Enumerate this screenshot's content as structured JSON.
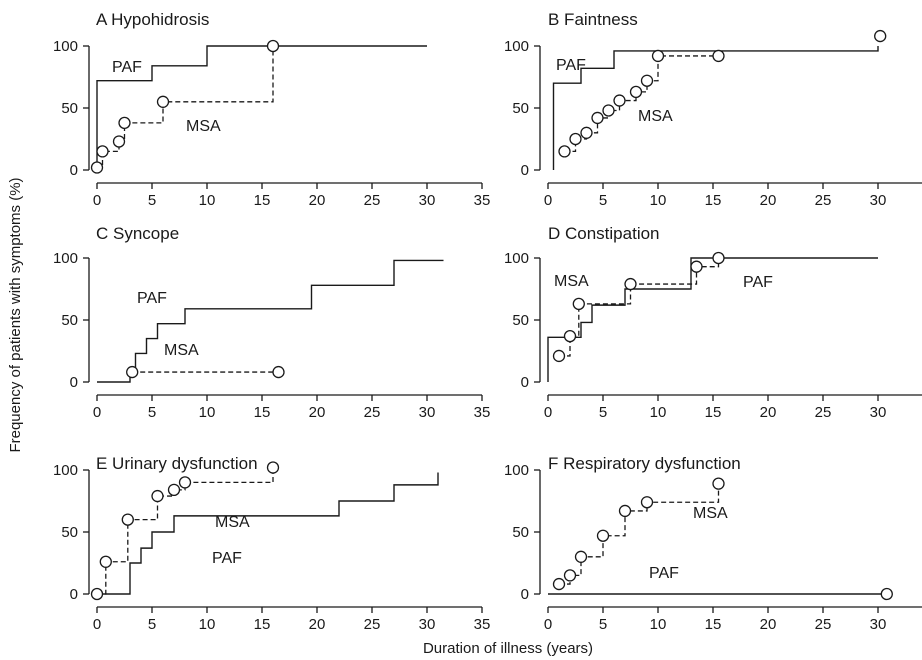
{
  "figure": {
    "xlabel": "Duration of illness (years)",
    "ylabel": "Frequency of patients with symptoms (%)"
  },
  "chart_data": [
    {
      "type": "line",
      "title": "A Hypohidrosis",
      "xlim": [
        0,
        35
      ],
      "ylim": [
        0,
        100
      ],
      "xticks": [
        "0",
        "5",
        "10",
        "15",
        "20",
        "25",
        "30",
        "35"
      ],
      "yticks": [
        "0",
        "50",
        "100"
      ],
      "series": [
        {
          "name": "PAF",
          "style": "solid-step",
          "markers": false,
          "points": [
            [
              0,
              0
            ],
            [
              0,
              72
            ],
            [
              5,
              72
            ],
            [
              5,
              84
            ],
            [
              10,
              84
            ],
            [
              10,
              100
            ],
            [
              30,
              100
            ]
          ]
        },
        {
          "name": "MSA",
          "style": "dashed-step",
          "markers": true,
          "points": [
            [
              0,
              2
            ],
            [
              0.5,
              15
            ],
            [
              2,
              23
            ],
            [
              2.5,
              38
            ],
            [
              6,
              55
            ],
            [
              16,
              100
            ]
          ]
        }
      ]
    },
    {
      "type": "line",
      "title": "B Faintness",
      "xlim": [
        0,
        35
      ],
      "ylim": [
        0,
        100
      ],
      "xticks": [
        "0",
        "5",
        "10",
        "15",
        "20",
        "25",
        "30",
        "35"
      ],
      "yticks": [
        "0",
        "50",
        "100"
      ],
      "series": [
        {
          "name": "PAF",
          "style": "solid-step",
          "markers": false,
          "points": [
            [
              0.5,
              0
            ],
            [
              0.5,
              70
            ],
            [
              3,
              70
            ],
            [
              3,
              82
            ],
            [
              6,
              82
            ],
            [
              6,
              96
            ],
            [
              30,
              96
            ],
            [
              30,
              100
            ]
          ]
        },
        {
          "name": "MSA",
          "style": "dashed-step",
          "markers": true,
          "points": [
            [
              1.5,
              15
            ],
            [
              2.5,
              25
            ],
            [
              3.5,
              30
            ],
            [
              4.5,
              42
            ],
            [
              5.5,
              48
            ],
            [
              6.5,
              56
            ],
            [
              8,
              63
            ],
            [
              9,
              72
            ],
            [
              10,
              92
            ],
            [
              15.5,
              92
            ]
          ]
        },
        {
          "name": "",
          "style": "marker-only",
          "markers": true,
          "points": [
            [
              30.2,
              108
            ]
          ]
        }
      ]
    },
    {
      "type": "line",
      "title": "C Syncope",
      "xlim": [
        0,
        35
      ],
      "ylim": [
        0,
        100
      ],
      "xticks": [
        "0",
        "5",
        "10",
        "15",
        "20",
        "25",
        "30",
        "35"
      ],
      "yticks": [
        "0",
        "50",
        "100"
      ],
      "series": [
        {
          "name": "PAF",
          "style": "solid-step",
          "markers": false,
          "points": [
            [
              0,
              0
            ],
            [
              3,
              0
            ],
            [
              3,
              10
            ],
            [
              3.5,
              10
            ],
            [
              3.5,
              23
            ],
            [
              4.5,
              23
            ],
            [
              4.5,
              35
            ],
            [
              5.5,
              35
            ],
            [
              5.5,
              47
            ],
            [
              8,
              47
            ],
            [
              8,
              59
            ],
            [
              19.5,
              59
            ],
            [
              19.5,
              78
            ],
            [
              27,
              78
            ],
            [
              27,
              98
            ],
            [
              31.5,
              98
            ]
          ]
        },
        {
          "name": "MSA",
          "style": "dashed-step",
          "markers": true,
          "points": [
            [
              3.2,
              8
            ],
            [
              16.5,
              8
            ]
          ]
        }
      ]
    },
    {
      "type": "line",
      "title": "D Constipation",
      "xlim": [
        0,
        35
      ],
      "ylim": [
        0,
        100
      ],
      "xticks": [
        "0",
        "5",
        "10",
        "15",
        "20",
        "25",
        "30",
        "35"
      ],
      "yticks": [
        "0",
        "50",
        "100"
      ],
      "series": [
        {
          "name": "PAF",
          "style": "solid-step",
          "markers": false,
          "points": [
            [
              0,
              0
            ],
            [
              0,
              36
            ],
            [
              2,
              36
            ],
            [
              2,
              36
            ],
            [
              3,
              36
            ],
            [
              3,
              48
            ],
            [
              4,
              48
            ],
            [
              4,
              62
            ],
            [
              7,
              62
            ],
            [
              7,
              75
            ],
            [
              13,
              75
            ],
            [
              13,
              100
            ],
            [
              30,
              100
            ]
          ]
        },
        {
          "name": "MSA",
          "style": "dashed-step",
          "markers": true,
          "points": [
            [
              1,
              21
            ],
            [
              2,
              37
            ],
            [
              2.8,
              63
            ],
            [
              7.5,
              79
            ],
            [
              13.5,
              93
            ],
            [
              15.5,
              100
            ]
          ]
        }
      ]
    },
    {
      "type": "line",
      "title": "E Urinary dysfunction",
      "xlim": [
        0,
        35
      ],
      "ylim": [
        0,
        100
      ],
      "xticks": [
        "0",
        "5",
        "10",
        "15",
        "20",
        "25",
        "30",
        "35"
      ],
      "yticks": [
        "0",
        "50",
        "100"
      ],
      "series": [
        {
          "name": "PAF",
          "style": "solid-step",
          "markers": false,
          "points": [
            [
              0,
              0
            ],
            [
              3,
              0
            ],
            [
              3,
              25
            ],
            [
              4,
              25
            ],
            [
              4,
              37
            ],
            [
              5,
              37
            ],
            [
              5,
              50
            ],
            [
              7,
              50
            ],
            [
              7,
              63
            ],
            [
              22,
              63
            ],
            [
              22,
              75
            ],
            [
              27,
              75
            ],
            [
              27,
              88
            ],
            [
              31,
              88
            ],
            [
              31,
              98
            ]
          ]
        },
        {
          "name": "MSA",
          "style": "dashed-step",
          "markers": true,
          "points": [
            [
              0,
              0
            ],
            [
              0.8,
              26
            ],
            [
              2.8,
              60
            ],
            [
              5.5,
              79
            ],
            [
              7,
              84
            ],
            [
              8,
              90
            ],
            [
              16,
              102
            ]
          ]
        }
      ]
    },
    {
      "type": "line",
      "title": "F Respiratory dysfunction",
      "xlim": [
        0,
        35
      ],
      "ylim": [
        0,
        100
      ],
      "xticks": [
        "0",
        "5",
        "10",
        "15",
        "20",
        "25",
        "30",
        "35"
      ],
      "yticks": [
        "0",
        "50",
        "100"
      ],
      "series": [
        {
          "name": "PAF",
          "style": "solid",
          "markers": false,
          "points": [
            [
              0,
              0
            ],
            [
              30.8,
              0
            ]
          ]
        },
        {
          "name": "",
          "style": "marker-only",
          "markers": true,
          "points": [
            [
              30.8,
              0
            ]
          ]
        },
        {
          "name": "MSA",
          "style": "dashed-step",
          "markers": true,
          "points": [
            [
              1,
              8
            ],
            [
              2,
              15
            ],
            [
              3,
              30
            ],
            [
              5,
              47
            ],
            [
              7,
              67
            ],
            [
              9,
              74
            ],
            [
              15.5,
              89
            ]
          ]
        }
      ]
    }
  ]
}
